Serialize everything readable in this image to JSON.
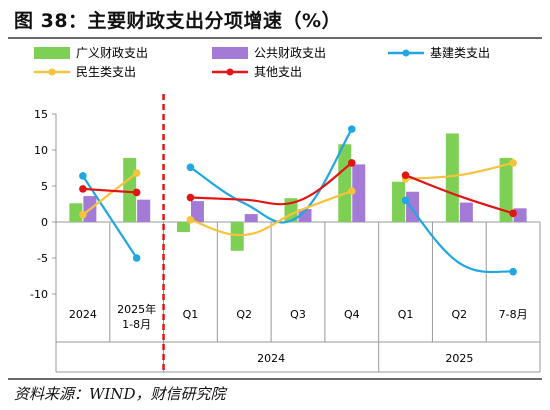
{
  "title": "图 38：主要财政支出分项增速（%）",
  "source": "资料来源：WIND，财信研究院",
  "colors": {
    "broad": "#7ed055",
    "public": "#a37ad6",
    "infra": "#1ea7e1",
    "livelihood": "#f7c23c",
    "other": "#e21414",
    "divider": "#e21414",
    "axis": "#999999"
  },
  "chart_data": {
    "type": "bar",
    "categories": [
      "2024",
      "2025年\n1-8月",
      "Q1",
      "Q2",
      "Q3",
      "Q4",
      "Q1",
      "Q2",
      "7-8月"
    ],
    "groups": [
      {
        "label": "2024",
        "from": 2,
        "to": 5
      },
      {
        "label": "2025",
        "from": 6,
        "to": 8
      }
    ],
    "ylim": [
      -10,
      15
    ],
    "yticks": [
      -10,
      -5,
      0,
      5,
      10,
      15
    ],
    "series": [
      {
        "name": "广义财政支出",
        "kind": "bar",
        "color_key": "broad",
        "values": [
          2.6,
          8.9,
          -1.4,
          -4.0,
          3.3,
          10.8,
          5.6,
          12.3,
          8.9
        ]
      },
      {
        "name": "公共财政支出",
        "kind": "bar",
        "color_key": "public",
        "values": [
          3.6,
          3.1,
          2.9,
          1.1,
          1.8,
          8.0,
          4.2,
          2.7,
          1.9
        ]
      },
      {
        "name": "基建类支出",
        "kind": "line",
        "color_key": "infra",
        "values": [
          6.4,
          -5.0,
          7.6,
          2.6,
          0.7,
          12.9,
          3.0,
          -5.7,
          -6.9
        ]
      },
      {
        "name": "民生类支出",
        "kind": "line",
        "color_key": "livelihood",
        "values": [
          1.0,
          6.8,
          0.3,
          -1.8,
          1.5,
          4.3,
          6.0,
          6.5,
          8.2
        ]
      },
      {
        "name": "其他支出",
        "kind": "line",
        "color_key": "other",
        "values": [
          4.6,
          4.1,
          3.4,
          3.1,
          2.9,
          8.2,
          6.5,
          3.6,
          1.2
        ]
      }
    ],
    "segments": [
      [
        0,
        1
      ],
      [
        2,
        5
      ],
      [
        6,
        8
      ]
    ],
    "legend": {
      "position": "top",
      "columns": 3
    },
    "grid": false
  }
}
